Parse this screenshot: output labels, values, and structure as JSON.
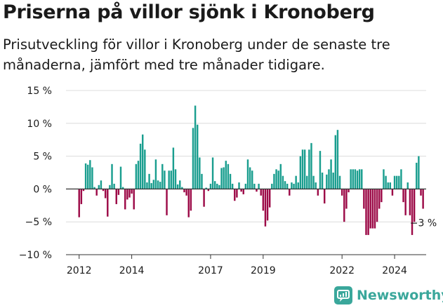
{
  "title": "Priserna på villor sjönk i Kronoberg",
  "subtitle": "Prisutveckling för villor i Kronoberg under de senaste tre månaderna, jämfört med tre månader tidigare.",
  "brand": {
    "name": "Newsworthy",
    "color": "#3aa79b"
  },
  "colors": {
    "positive": "#1a9e8f",
    "negative": "#9c0a47",
    "grid": "#dcdcdc",
    "axis": "#333333"
  },
  "chart_data": {
    "type": "bar",
    "title": "Priserna på villor sjönk i Kronoberg",
    "xlabel": "",
    "ylabel": "",
    "ylim": [
      -10,
      15
    ],
    "yticks": [
      -10,
      -5,
      0,
      5,
      10,
      15
    ],
    "ytick_labels": [
      "−10 %",
      "−5 %",
      "0 %",
      "5 %",
      "10 %",
      "15 %"
    ],
    "x_range": [
      2011.5,
      2025.2
    ],
    "xticks": [
      2012,
      2014,
      2017,
      2019,
      2022,
      2024
    ],
    "xtick_labels": [
      "2012",
      "2014",
      "2017",
      "2019",
      "2022",
      "2024"
    ],
    "start": [
      2012,
      1
    ],
    "unit": "month",
    "annotation": {
      "label": "−3 %",
      "index": 158,
      "value": -3
    },
    "values": [
      -4.3,
      -2.3,
      -0.3,
      3.9,
      3.7,
      4.4,
      3.3,
      0.3,
      -1.0,
      0.6,
      1.3,
      -0.3,
      -1.4,
      -4.2,
      0.6,
      3.8,
      0.8,
      -2.3,
      -0.9,
      3.4,
      0.3,
      -3.1,
      -1.6,
      -1.3,
      -0.7,
      -3.1,
      3.8,
      4.3,
      6.9,
      8.3,
      6.0,
      1.0,
      2.3,
      0.9,
      1.4,
      4.5,
      1.3,
      1.1,
      3.8,
      2.8,
      -4.0,
      2.8,
      2.8,
      6.3,
      3.0,
      0.7,
      1.3,
      0.3,
      -0.5,
      -1.0,
      -4.3,
      -3.3,
      9.3,
      12.7,
      9.8,
      4.8,
      2.3,
      -2.7,
      0.2,
      -0.3,
      0.8,
      4.8,
      1.2,
      0.8,
      0.6,
      3.2,
      3.3,
      4.3,
      3.8,
      2.3,
      0.8,
      -1.8,
      -1.3,
      1.0,
      -0.4,
      -0.8,
      0.8,
      4.5,
      3.3,
      2.8,
      0.8,
      -0.4,
      0.8,
      -1.0,
      -3.3,
      -5.7,
      -4.8,
      -2.8,
      0.8,
      2.3,
      3.0,
      2.8,
      3.8,
      2.0,
      1.2,
      0.8,
      -1.0,
      1.0,
      0.8,
      2.0,
      1.0,
      5.0,
      6.0,
      6.0,
      2.0,
      6.0,
      7.0,
      2.0,
      1.0,
      -1.0,
      5.8,
      2.5,
      -2.2,
      2.2,
      3.0,
      4.5,
      2.5,
      8.2,
      9.0,
      2.0,
      -1.0,
      -5.0,
      -3.0,
      -0.5,
      3.0,
      3.0,
      3.0,
      2.8,
      3.0,
      3.0,
      -3.0,
      -7.0,
      -7.0,
      -6.0,
      -6.0,
      -6.0,
      -5.0,
      -3.0,
      -2.0,
      3.0,
      2.0,
      1.0,
      1.0,
      -1.0,
      2.0,
      2.0,
      2.0,
      3.0,
      -2.0,
      -4.0,
      1.0,
      -4.0,
      -7.0,
      -5.0,
      4.0,
      5.0,
      -1.0,
      -3.0
    ]
  }
}
